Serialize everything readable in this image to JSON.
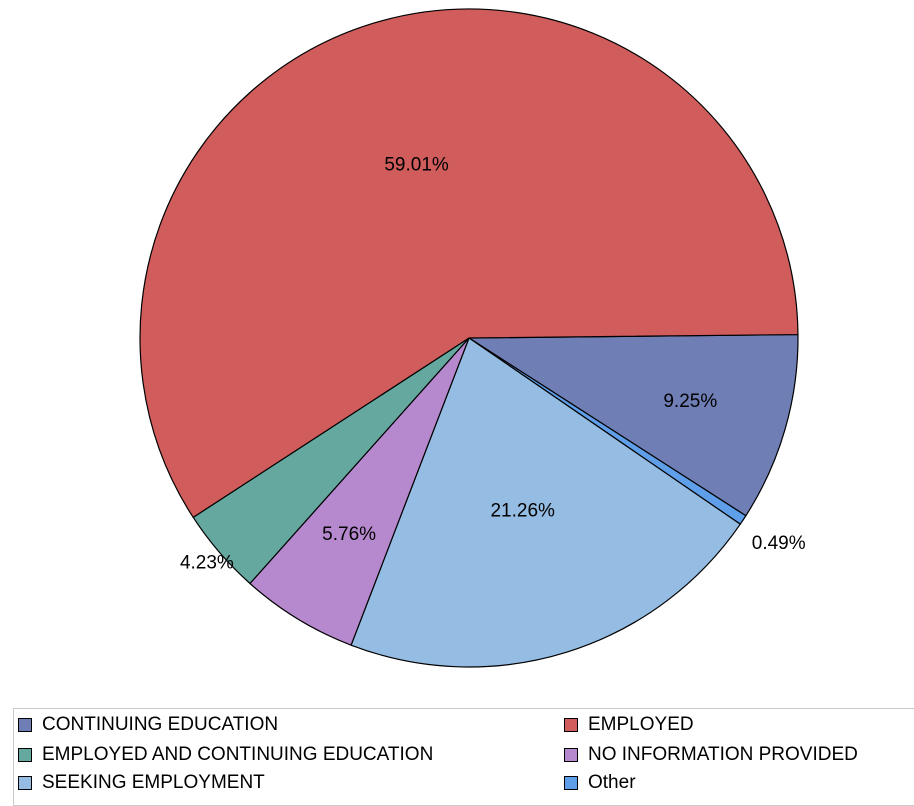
{
  "chart_data": {
    "type": "pie",
    "title": "",
    "slices": [
      {
        "name": "CONTINUING EDUCATION",
        "value": 9.25,
        "label": "9.25%",
        "color": "#6f7eb5"
      },
      {
        "name": "Other",
        "value": 0.49,
        "label": "0.49%",
        "color": "#5f9ee8"
      },
      {
        "name": "SEEKING EMPLOYMENT",
        "value": 21.26,
        "label": "21.26%",
        "color": "#95bce2"
      },
      {
        "name": "NO INFORMATION PROVIDED",
        "value": 5.76,
        "label": "5.76%",
        "color": "#b689cf"
      },
      {
        "name": "EMPLOYED AND CONTINUING EDUCATION",
        "value": 4.23,
        "label": "4.23%",
        "color": "#64a8a0"
      },
      {
        "name": "EMPLOYED",
        "value": 59.01,
        "label": "59.01%",
        "color": "#d05c5c"
      }
    ],
    "legend": {
      "placement": "bottom",
      "entries": [
        {
          "label": "CONTINUING EDUCATION",
          "color": "#6f7eb5"
        },
        {
          "label": "EMPLOYED",
          "color": "#d05c5c"
        },
        {
          "label": "EMPLOYED AND CONTINUING EDUCATION",
          "color": "#64a8a0"
        },
        {
          "label": "NO INFORMATION PROVIDED",
          "color": "#b689cf"
        },
        {
          "label": "SEEKING EMPLOYMENT",
          "color": "#95bce2"
        },
        {
          "label": "Other",
          "color": "#5f9ee8"
        }
      ]
    }
  }
}
